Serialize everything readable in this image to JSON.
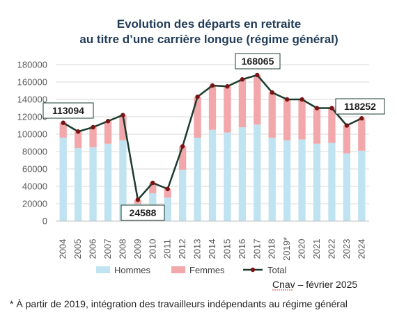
{
  "chart_data": {
    "type": "bar",
    "stacked": true,
    "title": [
      "Evolution des départs en retraite",
      "au titre d’une carrière longue (régime général)"
    ],
    "categories": [
      "2004",
      "2005",
      "2006",
      "2007",
      "2008",
      "2009",
      "2010",
      "2011",
      "2012",
      "2013",
      "2014",
      "2015",
      "2016",
      "2017",
      "2018",
      "2019*",
      "2020",
      "2021",
      "2022",
      "2023",
      "2024"
    ],
    "series": [
      {
        "name": "Hommes",
        "type": "bar",
        "color": "#bfe3f1",
        "values": [
          96000,
          84000,
          85000,
          89000,
          93000,
          20000,
          32000,
          27000,
          59000,
          96000,
          105000,
          102000,
          108000,
          111000,
          96000,
          93000,
          94000,
          89000,
          90000,
          78000,
          81000
        ]
      },
      {
        "name": "Femmes",
        "type": "bar",
        "color": "#f2a7ab",
        "values": [
          17094,
          19000,
          23000,
          26000,
          29000,
          4588,
          12000,
          10000,
          27000,
          47000,
          51000,
          53000,
          55000,
          57065,
          52000,
          47000,
          46000,
          41000,
          40000,
          32000,
          37252
        ]
      },
      {
        "name": "Total",
        "type": "line",
        "color": "#1b3a2c",
        "values": [
          113094,
          103000,
          108000,
          115000,
          122000,
          24588,
          44000,
          37000,
          86000,
          143000,
          156000,
          155000,
          163000,
          168065,
          148000,
          140000,
          140000,
          130000,
          130000,
          110000,
          118252
        ]
      }
    ],
    "ylim": [
      0,
      180000
    ],
    "yticks": [
      0,
      20000,
      40000,
      60000,
      80000,
      100000,
      120000,
      140000,
      160000,
      180000
    ],
    "grid": true,
    "legend_position": "bottom",
    "annotations": [
      {
        "category": "2004",
        "label": "113094"
      },
      {
        "category": "2009",
        "label": "24588"
      },
      {
        "category": "2017",
        "label": "168065"
      },
      {
        "category": "2024",
        "label": "118252"
      }
    ],
    "source": "Cnav – février 2025",
    "footnote": "* À partir de 2019, intégration des travailleurs indépendants au régime général"
  }
}
